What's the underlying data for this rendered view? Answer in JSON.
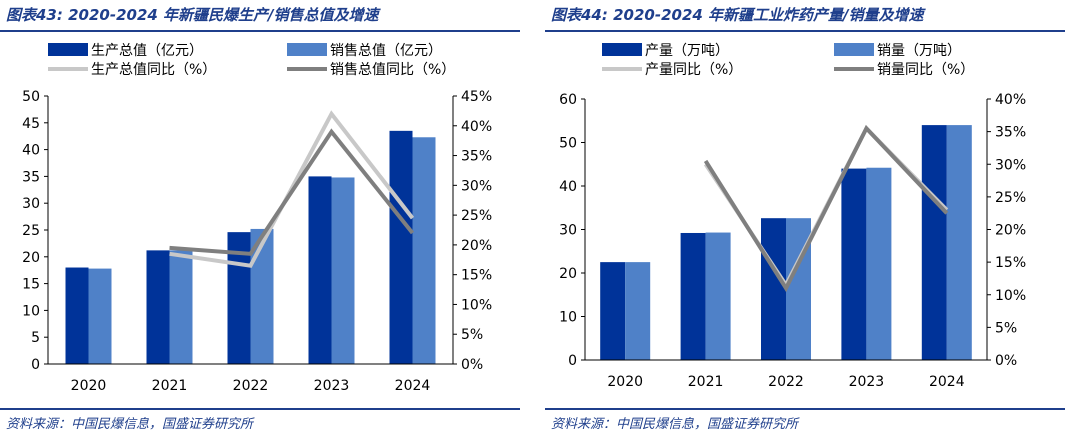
{
  "charts": [
    {
      "id": "left",
      "title": "图表43: 2020-2024 年新疆民爆生产/销售总值及增速",
      "source": "资料来源：中国民爆信息，国盛证券研究所",
      "chart_data": {
        "type": "bar",
        "categories": [
          "2020",
          "2021",
          "2022",
          "2023",
          "2024"
        ],
        "series": [
          {
            "name": "生产总值（亿元）",
            "kind": "bar",
            "axis": "left",
            "color": "#003399",
            "values": [
              18.0,
              21.2,
              24.6,
              35.0,
              43.5
            ]
          },
          {
            "name": "销售总值（亿元）",
            "kind": "bar",
            "axis": "left",
            "color": "#4f81c8",
            "values": [
              17.8,
              21.2,
              25.2,
              34.8,
              42.3
            ]
          },
          {
            "name": "生产总值同比（%）",
            "kind": "line",
            "axis": "right",
            "color": "#c8c8c8",
            "values": [
              null,
              18.5,
              16.5,
              42.0,
              24.5
            ]
          },
          {
            "name": "销售总值同比（%）",
            "kind": "line",
            "axis": "right",
            "color": "#7f7f7f",
            "values": [
              null,
              19.5,
              18.5,
              39.0,
              22.0
            ]
          }
        ],
        "y_left": {
          "min": 0,
          "max": 50,
          "step": 5,
          "ticks": [
            "0",
            "5",
            "10",
            "15",
            "20",
            "25",
            "30",
            "35",
            "40",
            "45",
            "50"
          ]
        },
        "y_right": {
          "min": 0,
          "max": 45,
          "step": 5,
          "ticks": [
            "0%",
            "5%",
            "10%",
            "15%",
            "20%",
            "25%",
            "30%",
            "35%",
            "40%",
            "45%"
          ]
        },
        "grid": false,
        "legend": "top"
      }
    },
    {
      "id": "right",
      "title": "图表44: 2020-2024 年新疆工业炸药产量/销量及增速",
      "source": "资料来源：中国民爆信息，国盛证券研究所",
      "chart_data": {
        "type": "bar",
        "categories": [
          "2020",
          "2021",
          "2022",
          "2023",
          "2024"
        ],
        "series": [
          {
            "name": "产量（万吨）",
            "kind": "bar",
            "axis": "left",
            "color": "#003399",
            "values": [
              22.5,
              29.2,
              32.6,
              44.0,
              54.0
            ]
          },
          {
            "name": "销量（万吨）",
            "kind": "bar",
            "axis": "left",
            "color": "#4f81c8",
            "values": [
              22.5,
              29.3,
              32.6,
              44.2,
              54.0
            ]
          },
          {
            "name": "产量同比（%）",
            "kind": "line",
            "axis": "right",
            "color": "#c8c8c8",
            "values": [
              null,
              30.0,
              11.5,
              35.5,
              23.0
            ]
          },
          {
            "name": "销量同比（%）",
            "kind": "line",
            "axis": "right",
            "color": "#7f7f7f",
            "values": [
              null,
              30.5,
              11.0,
              35.5,
              22.5
            ]
          }
        ],
        "y_left": {
          "min": 0,
          "max": 60,
          "step": 10,
          "ticks": [
            "0",
            "10",
            "20",
            "30",
            "40",
            "50",
            "60"
          ]
        },
        "y_right": {
          "min": 0,
          "max": 40,
          "step": 5,
          "ticks": [
            "0%",
            "5%",
            "10%",
            "15%",
            "20%",
            "25%",
            "30%",
            "35%",
            "40%"
          ]
        },
        "grid": false,
        "legend": "top"
      }
    }
  ]
}
